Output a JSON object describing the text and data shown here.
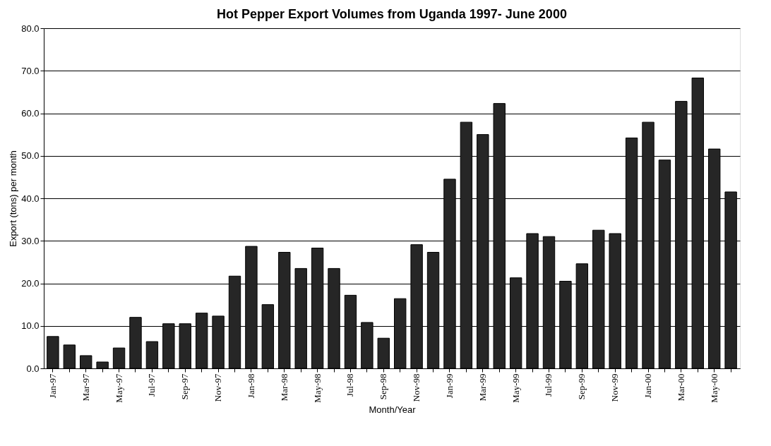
{
  "chart_data": {
    "type": "bar",
    "title": "Hot Pepper Export Volumes from Uganda 1997- June 2000",
    "xlabel": "Month/Year",
    "ylabel": "Export (tons) per month",
    "categories": [
      "Jan-97",
      null,
      "Mar-97",
      null,
      "May-97",
      null,
      "Jul-97",
      null,
      "Sep-97",
      null,
      "Nov-97",
      null,
      "Jan-98",
      null,
      "Mar-98",
      null,
      "May-98",
      null,
      "Jul-98",
      null,
      "Sep-98",
      null,
      "Nov-98",
      null,
      "Jan-99",
      null,
      "Mar-99",
      null,
      "May-99",
      null,
      "Jul-99",
      null,
      "Sep-99",
      null,
      "Nov-99",
      null,
      "Jan-00",
      null,
      "Mar-00",
      null,
      "May-00",
      null
    ],
    "series": [
      {
        "color": "#262626",
        "values": [
          7.5,
          5.5,
          3.0,
          1.5,
          4.8,
          12.0,
          6.3,
          10.5,
          10.5,
          13.0,
          12.3,
          21.7,
          28.7,
          15.0,
          27.3,
          23.5,
          28.3,
          23.5,
          17.2,
          10.8,
          7.1,
          16.4,
          29.1,
          27.3,
          44.5,
          57.9,
          55.0,
          62.3,
          21.3,
          31.7,
          31.0,
          20.5,
          24.6,
          32.5,
          31.7,
          54.2,
          57.9,
          49.0,
          62.8,
          68.3,
          51.6,
          41.5
        ]
      }
    ],
    "ylim": [
      0,
      80
    ],
    "yticks": [
      {
        "value": 0,
        "label": "0.0"
      },
      {
        "value": 10,
        "label": "10.0"
      },
      {
        "value": 20,
        "label": "20.0"
      },
      {
        "value": 30,
        "label": "30.0"
      },
      {
        "value": 40,
        "label": "40.0"
      },
      {
        "value": 50,
        "label": "50.0"
      },
      {
        "value": 60,
        "label": "60.0"
      },
      {
        "value": 70,
        "label": "70.0"
      },
      {
        "value": 80,
        "label": "80.0"
      }
    ],
    "grid": "y"
  }
}
